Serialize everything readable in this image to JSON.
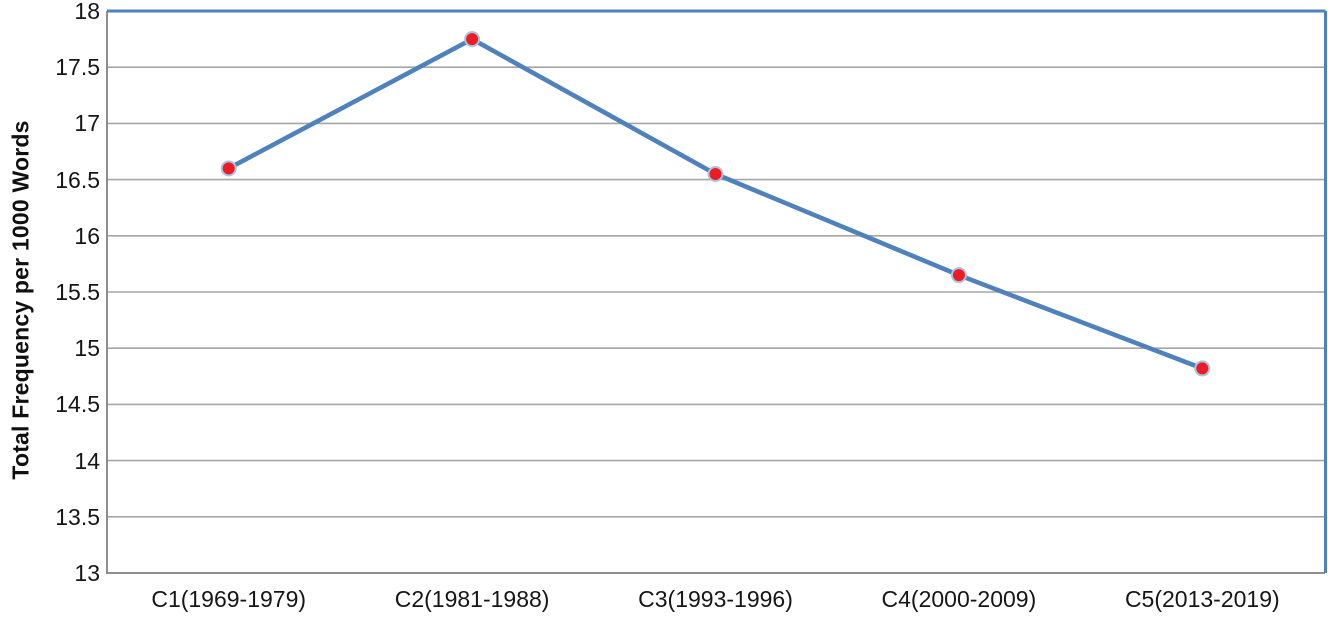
{
  "chart_data": {
    "type": "line",
    "title": "",
    "xlabel": "",
    "ylabel": "Total Frequency per 1000 Words",
    "categories": [
      "C1(1969-1979)",
      "C2(1981-1988)",
      "C3(1993-1996)",
      "C4(2000-2009)",
      "C5(2013-2019)"
    ],
    "values": [
      16.6,
      17.75,
      16.55,
      15.65,
      14.82
    ],
    "ylim": [
      13,
      18
    ],
    "ytick_step": 0.5,
    "yticks": [
      "18",
      "17.5",
      "17",
      "16.5",
      "16",
      "15.5",
      "15",
      "14.5",
      "14",
      "13.5",
      "13"
    ],
    "grid": true,
    "legend": false,
    "colors": {
      "line": "#4f81bd",
      "marker_fill": "#ed1c24",
      "marker_edge": "#a9c3e2",
      "gridline": "#a6a6a6",
      "axis_line": "#8e8e8e",
      "frame": "#4f81bd",
      "text": "#161616",
      "background": "#ffffff"
    }
  }
}
